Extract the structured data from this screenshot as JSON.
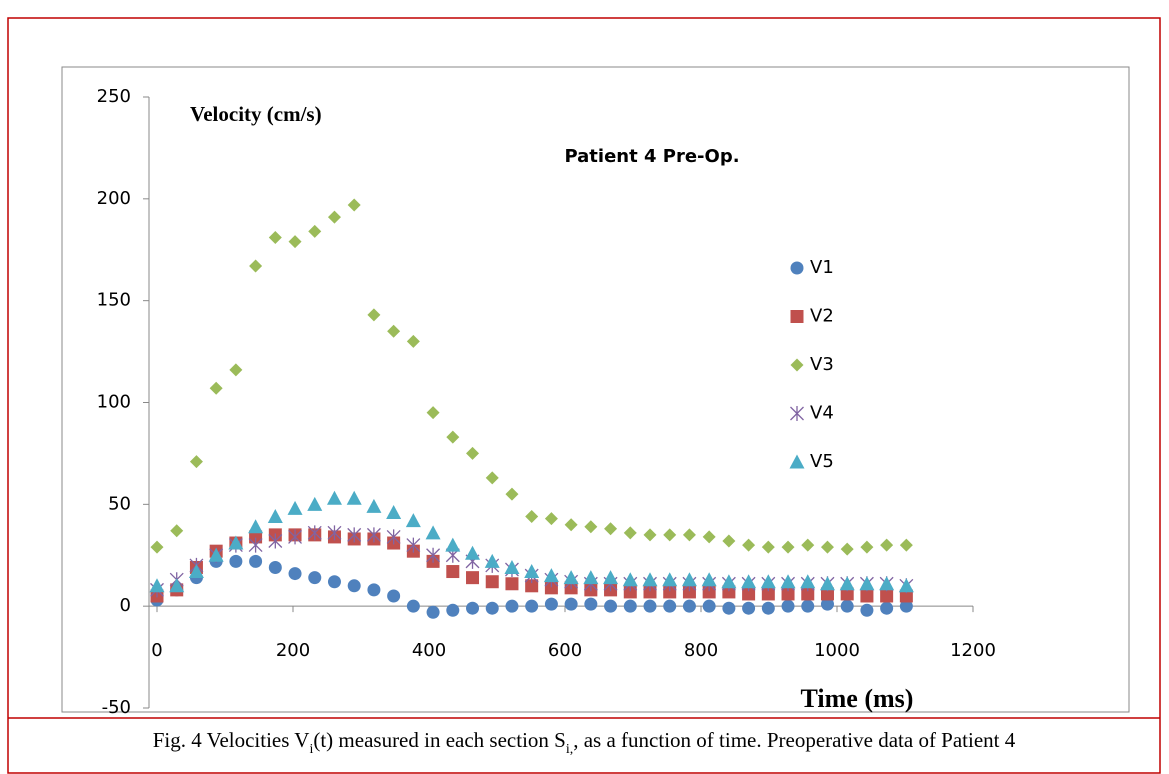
{
  "chart_data": {
    "type": "scatter",
    "title": "Patient 4 Pre-Op.",
    "x_label": "Time (ms)",
    "y_label": "Velocity (cm/s)",
    "caption": [
      "Fig. 4 Velocities V",
      "i",
      "(t) measured in each section S",
      "i,",
      ", as a function of time. Preoperative data of Patient 4"
    ],
    "x": [
      0,
      29,
      58,
      87,
      116,
      145,
      174,
      203,
      232,
      261,
      290,
      319,
      348,
      377,
      406,
      435,
      464,
      493,
      522,
      551,
      580,
      609,
      638,
      667,
      696,
      725,
      754,
      783,
      812,
      841,
      870,
      899,
      928,
      957,
      986,
      1015,
      1044,
      1073,
      1102
    ],
    "series": [
      {
        "name": "V1",
        "color": "#4f81bd",
        "marker": "circle",
        "values": [
          3,
          8,
          14,
          22,
          22,
          22,
          19,
          16,
          14,
          12,
          10,
          8,
          5,
          0,
          -3,
          -2,
          -1,
          -1,
          0,
          0,
          1,
          1,
          1,
          0,
          0,
          0,
          0,
          0,
          0,
          -1,
          -1,
          -1,
          0,
          0,
          1,
          0,
          -2,
          -1,
          0
        ]
      },
      {
        "name": "V2",
        "color": "#c0504d",
        "marker": "square",
        "values": [
          5,
          8,
          19,
          27,
          31,
          34,
          35,
          35,
          35,
          34,
          33,
          33,
          31,
          27,
          22,
          17,
          14,
          12,
          11,
          10,
          9,
          9,
          8,
          8,
          7,
          7,
          7,
          7,
          7,
          7,
          6,
          6,
          6,
          6,
          6,
          6,
          5,
          5,
          5
        ]
      },
      {
        "name": "V3",
        "color": "#9bbb59",
        "marker": "diamond",
        "values": [
          29,
          37,
          71,
          107,
          116,
          167,
          181,
          179,
          184,
          191,
          197,
          143,
          135,
          130,
          95,
          83,
          75,
          63,
          55,
          44,
          43,
          40,
          39,
          38,
          36,
          35,
          35,
          35,
          34,
          32,
          30,
          29,
          29,
          30,
          29,
          28,
          29,
          30,
          30
        ]
      },
      {
        "name": "V4",
        "color": "#8064a2",
        "marker": "star",
        "values": [
          8,
          13,
          20,
          25,
          30,
          30,
          32,
          34,
          36,
          36,
          35,
          35,
          34,
          30,
          25,
          25,
          22,
          20,
          18,
          15,
          13,
          12,
          11,
          11,
          11,
          11,
          11,
          11,
          11,
          11,
          11,
          11,
          11,
          11,
          11,
          11,
          11,
          11,
          10
        ]
      },
      {
        "name": "V5",
        "color": "#4bacc6",
        "marker": "triangle",
        "values": [
          10,
          10,
          17,
          25,
          31,
          39,
          44,
          48,
          50,
          53,
          53,
          49,
          46,
          42,
          36,
          30,
          26,
          22,
          19,
          17,
          15,
          14,
          14,
          14,
          13,
          13,
          13,
          13,
          13,
          12,
          12,
          12,
          12,
          12,
          11,
          11,
          11,
          11,
          10
        ]
      }
    ],
    "xlim": [
      0,
      1200
    ],
    "xticks": [
      0,
      200,
      400,
      600,
      800,
      1000,
      1200
    ],
    "ylim": [
      -50,
      250
    ],
    "yticks": [
      -50,
      0,
      50,
      100,
      150,
      200,
      250
    ],
    "legend": "right"
  }
}
